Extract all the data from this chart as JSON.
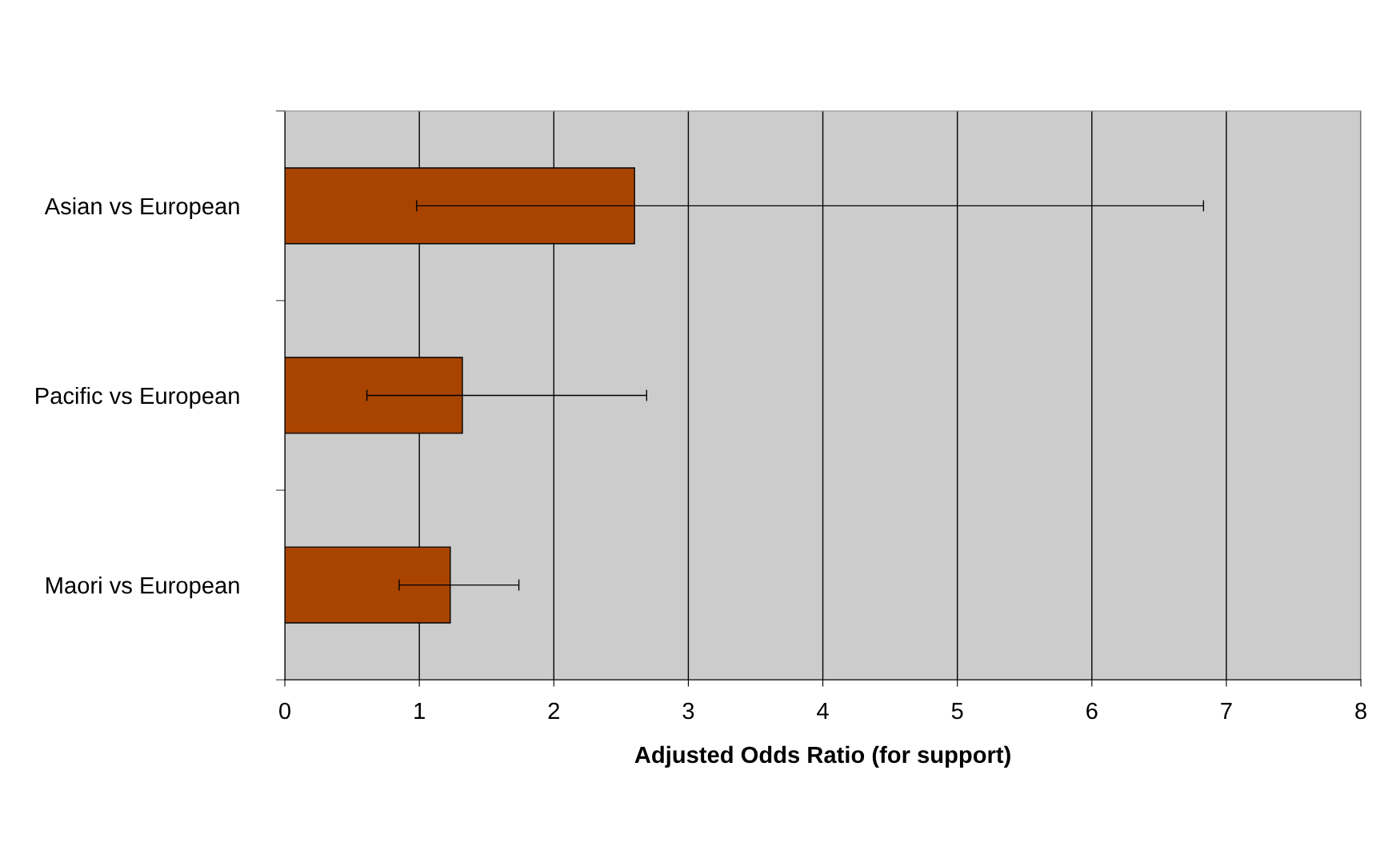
{
  "chart_data": {
    "type": "bar",
    "orientation": "horizontal",
    "categories": [
      "Asian vs European",
      "Pacific vs European",
      "Maori vs European"
    ],
    "values": [
      2.6,
      1.32,
      1.23
    ],
    "errors": [
      [
        0.98,
        6.83
      ],
      [
        0.61,
        2.69
      ],
      [
        0.85,
        1.74
      ]
    ],
    "color": "#a84300",
    "xlabel": "Adjusted Odds Ratio (for support)",
    "xlim": [
      0,
      8
    ],
    "xticks": [
      0,
      1,
      2,
      3,
      4,
      5,
      6,
      7,
      8
    ],
    "grid": "x",
    "legend": false
  }
}
